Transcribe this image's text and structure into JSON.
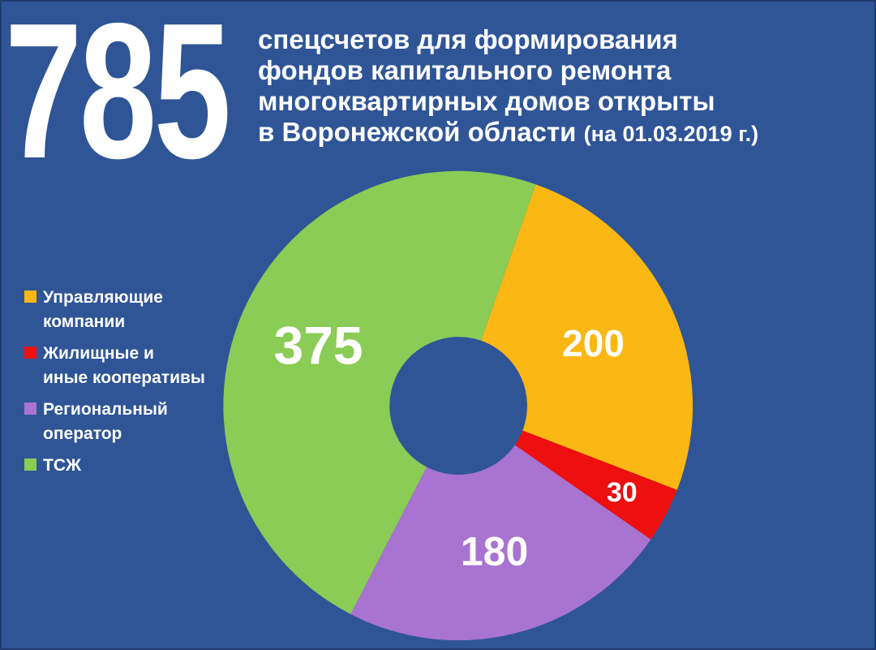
{
  "background_color": "#2F5597",
  "text_color": "#FFFFFF",
  "header": {
    "big_number": "785",
    "title_lines": [
      "спецсчетов для формирования",
      "фондов капитального ремонта",
      "многоквартирных домов открыты",
      "в Воронежской области"
    ],
    "title_suffix": "(на 01.03.2019 г.)"
  },
  "legend": {
    "items": [
      {
        "label": "Управляющие\nкомпании",
        "color": "#FBB713"
      },
      {
        "label": "Жилищные и\nиные кооперативы",
        "color": "#EE0F0F"
      },
      {
        "label": "Региональный\nоператор",
        "color": "#A974D1"
      },
      {
        "label": "ТСЖ",
        "color": "#8ACC55"
      }
    ]
  },
  "chart_data": {
    "type": "pie",
    "subtype": "donut",
    "title": "785 спецсчетов для формирования фондов капитального ремонта многоквартирных домов открыты в Воронежской области (на 01.03.2019 г.)",
    "total": 785,
    "segments": [
      {
        "name": "Управляющие компании",
        "value": 200,
        "color": "#FBB713"
      },
      {
        "name": "Жилищные и иные кооперативы",
        "value": 30,
        "color": "#EE0F0F"
      },
      {
        "name": "Региональный оператор",
        "value": 180,
        "color": "#A974D1"
      },
      {
        "name": "ТСЖ",
        "value": 375,
        "color": "#8ACC55"
      }
    ],
    "layout": {
      "start_angle_deg": 19.3,
      "clockwise": true,
      "legend_position": "left",
      "donut_hole_color": "#2F5597",
      "value_labels": "on-slice"
    }
  }
}
